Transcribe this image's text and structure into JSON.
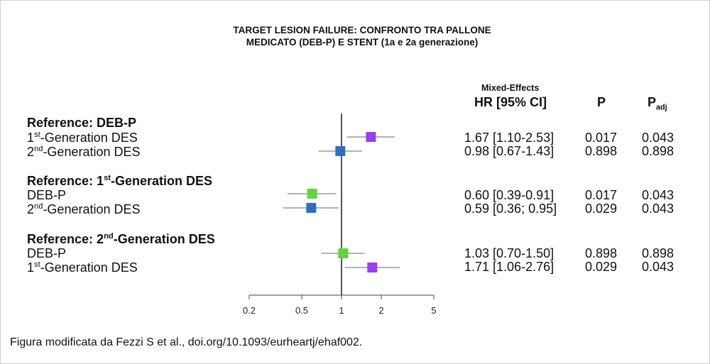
{
  "title_line1": "TARGET LESION FAILURE: CONFRONTO TRA PALLONE",
  "title_line2": "MEDICATO (DEB-P) E STENT (1a e 2a generazione)",
  "columns": {
    "method": "Mixed-Effects",
    "hr": "HR [95% CI]",
    "p": "P",
    "p_adj_main": "P",
    "p_adj_sub": "adj"
  },
  "groups": [
    {
      "ref_prefix": "Reference:  ",
      "ref_name": "DEB-P",
      "ref_ord": "",
      "ref_suffix": "",
      "rows": [
        {
          "ord": "st",
          "name": "1",
          "rest": "-Generation DES",
          "hr": "1.67 [1.10-2.53]",
          "p": "0.017",
          "padj": "0.043"
        },
        {
          "ord": "nd",
          "name": "2",
          "rest": "-Generation DES",
          "hr": "0.98 [0.67-1.43]",
          "p": "0.898",
          "padj": "0.898"
        }
      ]
    },
    {
      "ref_prefix": "Reference: ",
      "ref_name": "1",
      "ref_ord": "st",
      "ref_suffix": "-Generation DES",
      "rows": [
        {
          "ord": "",
          "name": "DEB-P",
          "rest": "",
          "hr": "0.60 [0.39-0.91]",
          "p": "0.017",
          "padj": "0.043"
        },
        {
          "ord": "nd",
          "name": "2",
          "rest": "-Generation DES",
          "hr": "0.59 [0.36; 0.95]",
          "p": "0.029",
          "padj": "0.043"
        }
      ]
    },
    {
      "ref_prefix": "Reference: ",
      "ref_name": "2",
      "ref_ord": "nd",
      "ref_suffix": "-Generation DES",
      "rows": [
        {
          "ord": "",
          "name": "DEB-P",
          "rest": "",
          "hr": "1.03 [0.70-1.50]",
          "p": "0.898",
          "padj": "0.898"
        },
        {
          "ord": "st",
          "name": "1",
          "rest": "-Generation DES",
          "hr": "1.71 [1.06-2.76]",
          "p": "0.029",
          "padj": "0.043"
        }
      ]
    }
  ],
  "caption": "Figura modificata da Fezzi S et al., doi.org/10.1093/eurheartj/ehaf002.",
  "chart_data": {
    "type": "forest",
    "x_scale": "log",
    "xlim": [
      0.2,
      5
    ],
    "x_ticks": [
      0.2,
      0.5,
      1,
      2,
      5
    ],
    "x_tick_labels": [
      "0.2",
      "0.5",
      "1",
      "2",
      "5"
    ],
    "reference_line": 1,
    "colors": {
      "1st-Generation DES": "#9b3ff2",
      "2nd-Generation DES": "#2f6fc0",
      "DEB-P": "#5fd63f"
    },
    "points": [
      {
        "group": "DEB-P",
        "label": "1st-Generation DES",
        "hr": 1.67,
        "lo": 1.1,
        "hi": 2.53,
        "color": "#9b3ff2"
      },
      {
        "group": "DEB-P",
        "label": "2nd-Generation DES",
        "hr": 0.98,
        "lo": 0.67,
        "hi": 1.43,
        "color": "#2f6fc0"
      },
      {
        "group": "1st-Generation DES",
        "label": "DEB-P",
        "hr": 0.6,
        "lo": 0.39,
        "hi": 0.91,
        "color": "#5fd63f"
      },
      {
        "group": "1st-Generation DES",
        "label": "2nd-Generation DES",
        "hr": 0.59,
        "lo": 0.36,
        "hi": 0.95,
        "color": "#2f6fc0"
      },
      {
        "group": "2nd-Generation DES",
        "label": "DEB-P",
        "hr": 1.03,
        "lo": 0.7,
        "hi": 1.5,
        "color": "#5fd63f"
      },
      {
        "group": "2nd-Generation DES",
        "label": "1st-Generation DES",
        "hr": 1.71,
        "lo": 1.06,
        "hi": 2.76,
        "color": "#9b3ff2"
      }
    ]
  }
}
